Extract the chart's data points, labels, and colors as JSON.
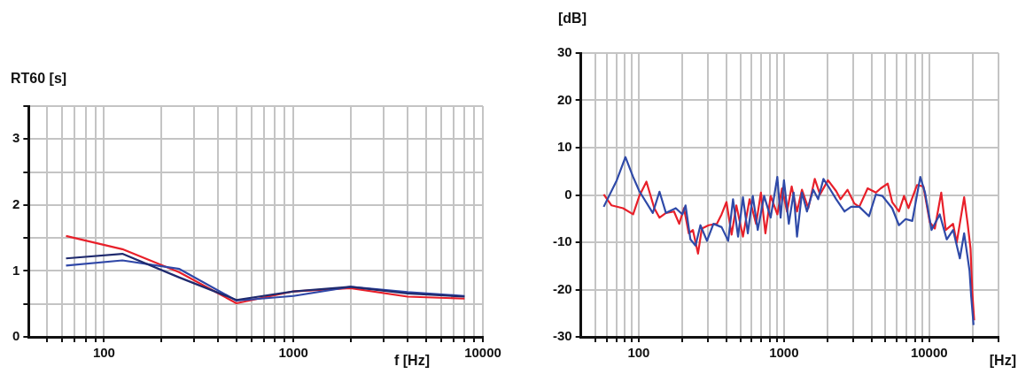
{
  "chart_data": [
    {
      "type": "line",
      "xlabel": "f [Hz]",
      "ylabel": "RT60 [s]",
      "log": "x",
      "grid": true,
      "legend": false,
      "xlim": [
        40,
        10000
      ],
      "ylim": [
        0,
        3.5
      ],
      "xticks": [
        {
          "value": 50,
          "label": null
        },
        {
          "value": 60,
          "label": null
        },
        {
          "value": 70,
          "label": null
        },
        {
          "value": 80,
          "label": null
        },
        {
          "value": 90,
          "label": null
        },
        100,
        {
          "value": 200,
          "label": null
        },
        {
          "value": 300,
          "label": null
        },
        {
          "value": 400,
          "label": null
        },
        {
          "value": 500,
          "label": null
        },
        {
          "value": 600,
          "label": null
        },
        {
          "value": 700,
          "label": null
        },
        {
          "value": 800,
          "label": null
        },
        {
          "value": 900,
          "label": null
        },
        1000,
        {
          "value": 2000,
          "label": null
        },
        {
          "value": 3000,
          "label": null
        },
        {
          "value": 4000,
          "label": null
        },
        {
          "value": 5000,
          "label": null
        },
        {
          "value": 6000,
          "label": null
        },
        {
          "value": 7000,
          "label": null
        },
        {
          "value": 8000,
          "label": null
        },
        {
          "value": 9000,
          "label": null
        },
        10000
      ],
      "yticks": [
        0,
        {
          "value": 0.5,
          "label": null
        },
        1,
        {
          "value": 1.5,
          "label": null
        },
        2,
        {
          "value": 2.5,
          "label": null
        },
        3,
        {
          "value": 3.5,
          "label": null
        }
      ],
      "x": [
        63,
        125,
        250,
        500,
        1000,
        2000,
        4000,
        8000
      ],
      "series": [
        {
          "color": "#1f2a6e",
          "values": [
            1.19,
            1.26,
            0.9,
            0.56,
            0.69,
            0.76,
            0.66,
            0.61
          ]
        },
        {
          "color": "#3048a8",
          "values": [
            1.08,
            1.16,
            1.03,
            0.55,
            0.62,
            0.76,
            0.68,
            0.62
          ]
        },
        {
          "color": "#e8202a",
          "values": [
            1.53,
            1.33,
            0.98,
            0.51,
            0.69,
            0.74,
            0.61,
            0.58
          ]
        }
      ]
    },
    {
      "type": "line",
      "xlabel": "[Hz]",
      "ylabel": "[dB]",
      "log": "x",
      "grid": true,
      "legend": false,
      "xlim": [
        40,
        30000
      ],
      "ylim": [
        -30,
        30
      ],
      "xticks": [
        {
          "value": 50,
          "label": null
        },
        {
          "value": 60,
          "label": null
        },
        {
          "value": 70,
          "label": null
        },
        {
          "value": 80,
          "label": null
        },
        {
          "value": 90,
          "label": null
        },
        100,
        {
          "value": 200,
          "label": null
        },
        {
          "value": 300,
          "label": null
        },
        {
          "value": 400,
          "label": null
        },
        {
          "value": 500,
          "label": null
        },
        {
          "value": 600,
          "label": null
        },
        {
          "value": 700,
          "label": null
        },
        {
          "value": 800,
          "label": null
        },
        {
          "value": 900,
          "label": null
        },
        1000,
        {
          "value": 2000,
          "label": null
        },
        {
          "value": 3000,
          "label": null
        },
        {
          "value": 4000,
          "label": null
        },
        {
          "value": 5000,
          "label": null
        },
        {
          "value": 6000,
          "label": null
        },
        {
          "value": 7000,
          "label": null
        },
        {
          "value": 8000,
          "label": null
        },
        {
          "value": 9000,
          "label": null
        },
        10000,
        {
          "value": 20000,
          "label": null
        },
        {
          "value": 30000,
          "label": null
        }
      ],
      "yticks": [
        -30,
        -20,
        -10,
        0,
        10,
        20,
        30
      ],
      "series": [
        {
          "color": "#2f4aa8",
          "x": [
            57.4,
            70.6,
            81,
            91.5,
            101,
            125,
            139,
            154,
            180,
            200,
            210,
            227,
            246,
            266,
            295,
            327,
            372,
            413,
            446,
            483,
            522,
            564,
            610,
            660,
            730,
            810,
            900,
            948,
            1000,
            1080,
            1166,
            1230,
            1330,
            1440,
            1590,
            1720,
            1870,
            2060,
            2290,
            2610,
            2900,
            3300,
            3850,
            4290,
            4760,
            5560,
            6190,
            6880,
            7650,
            8680,
            9360,
            10380,
            11820,
            13200,
            14600,
            16250,
            17400,
            18950,
            19440,
            20200
          ],
          "values": [
            -2.5,
            3.1,
            8,
            3.8,
            0.8,
            -3.8,
            0.7,
            -3.8,
            -2.8,
            -4.1,
            -2.2,
            -9.4,
            -10.7,
            -6.4,
            -9.7,
            -6.1,
            -6.8,
            -9.7,
            -0.9,
            -8.8,
            -0.5,
            -8.1,
            -0.2,
            -7.4,
            -0.2,
            -4.8,
            3.8,
            -4.8,
            3.1,
            -6.1,
            0.5,
            -8.8,
            0.5,
            -3.5,
            1.1,
            -0.9,
            3.4,
            1.4,
            -0.9,
            -3.5,
            -2.5,
            -2.5,
            -4.5,
            0.1,
            -0.2,
            -2.8,
            -6.4,
            -5.1,
            -5.5,
            3.8,
            0.5,
            -7.4,
            -4.1,
            -9.4,
            -7.4,
            -13.4,
            -8.1,
            -16,
            -21.3,
            -27.5
          ]
        },
        {
          "color": "#e8202a",
          "x": [
            57.4,
            65,
            78,
            91.5,
            101,
            113,
            128,
            139,
            154,
            175,
            190,
            205,
            221,
            236,
            256,
            272,
            303,
            345,
            372,
            402,
            436,
            470,
            522,
            580,
            643,
            694,
            745,
            810,
            900,
            970,
            1050,
            1130,
            1230,
            1330,
            1470,
            1630,
            1770,
            2010,
            2290,
            2450,
            2740,
            3050,
            3300,
            3770,
            4290,
            4640,
            5180,
            5560,
            6190,
            6710,
            7200,
            8240,
            9120,
            10100,
            10930,
            12100,
            13000,
            14600,
            15460,
            17400,
            18400,
            19260,
            19800,
            20400
          ],
          "values": [
            0.1,
            -2.2,
            -2.8,
            -4.1,
            -0.2,
            2.8,
            -2.8,
            -4.8,
            -3.8,
            -3.5,
            -6.1,
            -2.8,
            -8.1,
            -7.4,
            -12.4,
            -7.1,
            -6.4,
            -6.1,
            -4.1,
            -1.5,
            -8.4,
            -2.2,
            -8.8,
            -0.9,
            -6.1,
            0.5,
            -8.1,
            -0.2,
            -4.1,
            1.4,
            -3.5,
            1.8,
            -3.5,
            1.1,
            -2.8,
            3.4,
            0.1,
            3.1,
            0.8,
            -0.9,
            1.1,
            -1.8,
            -2.5,
            1.4,
            0.5,
            1.4,
            2.4,
            -1.5,
            -3.5,
            -0.2,
            -2.8,
            2.1,
            1.8,
            -5.8,
            -7.1,
            0.5,
            -7.4,
            -6.1,
            -10.1,
            -0.5,
            -6.1,
            -11.4,
            -20.6,
            -26.5
          ]
        }
      ]
    }
  ]
}
